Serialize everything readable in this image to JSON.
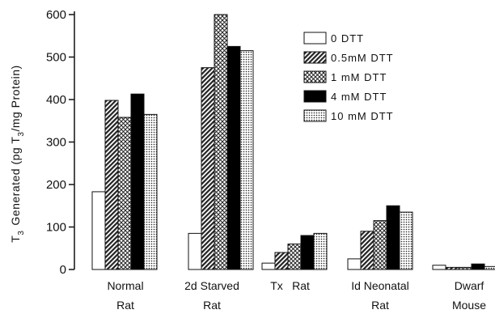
{
  "chart_data": {
    "type": "bar",
    "ylabel": "T3 Generated (pg T3/mg Protein)",
    "ylabel_parts": {
      "t3": "T",
      "t3_sub": "3",
      "middle": "Generated (pg T",
      "mid_sub": "3",
      "end": "/mg Protein)"
    },
    "xlabel": "",
    "ylim": [
      0,
      600
    ],
    "yticks": [
      0,
      100,
      200,
      300,
      400,
      500,
      600
    ],
    "categories": [
      {
        "line1": "Normal",
        "line2": "Rat"
      },
      {
        "line1": "2d Starved",
        "line2": "Rat"
      },
      {
        "line1": "Tx",
        "line1b": "Rat",
        "line2": ""
      },
      {
        "line1": "Id Neonatal",
        "line2": "Rat"
      },
      {
        "line1": "Dwarf",
        "line2": "Mouse"
      }
    ],
    "series": [
      {
        "name": "0 DTT",
        "pattern": "white",
        "values": [
          183,
          85,
          15,
          25,
          10
        ]
      },
      {
        "name": "0.5mM DTT",
        "pattern": "diagonal-hatch",
        "values": [
          398,
          475,
          40,
          90,
          5
        ]
      },
      {
        "name": "1 mM DTT",
        "pattern": "crosshatch",
        "values": [
          358,
          600,
          60,
          115,
          5
        ]
      },
      {
        "name": "4 mM DTT",
        "pattern": "solid-black",
        "values": [
          413,
          525,
          80,
          150,
          13
        ]
      },
      {
        "name": "10 mM DTT",
        "pattern": "dots",
        "values": [
          365,
          515,
          85,
          135,
          7
        ]
      }
    ],
    "legend_position": "top-right",
    "grid": false
  },
  "colors": {
    "ink": "#111111",
    "background": "#ffffff"
  }
}
